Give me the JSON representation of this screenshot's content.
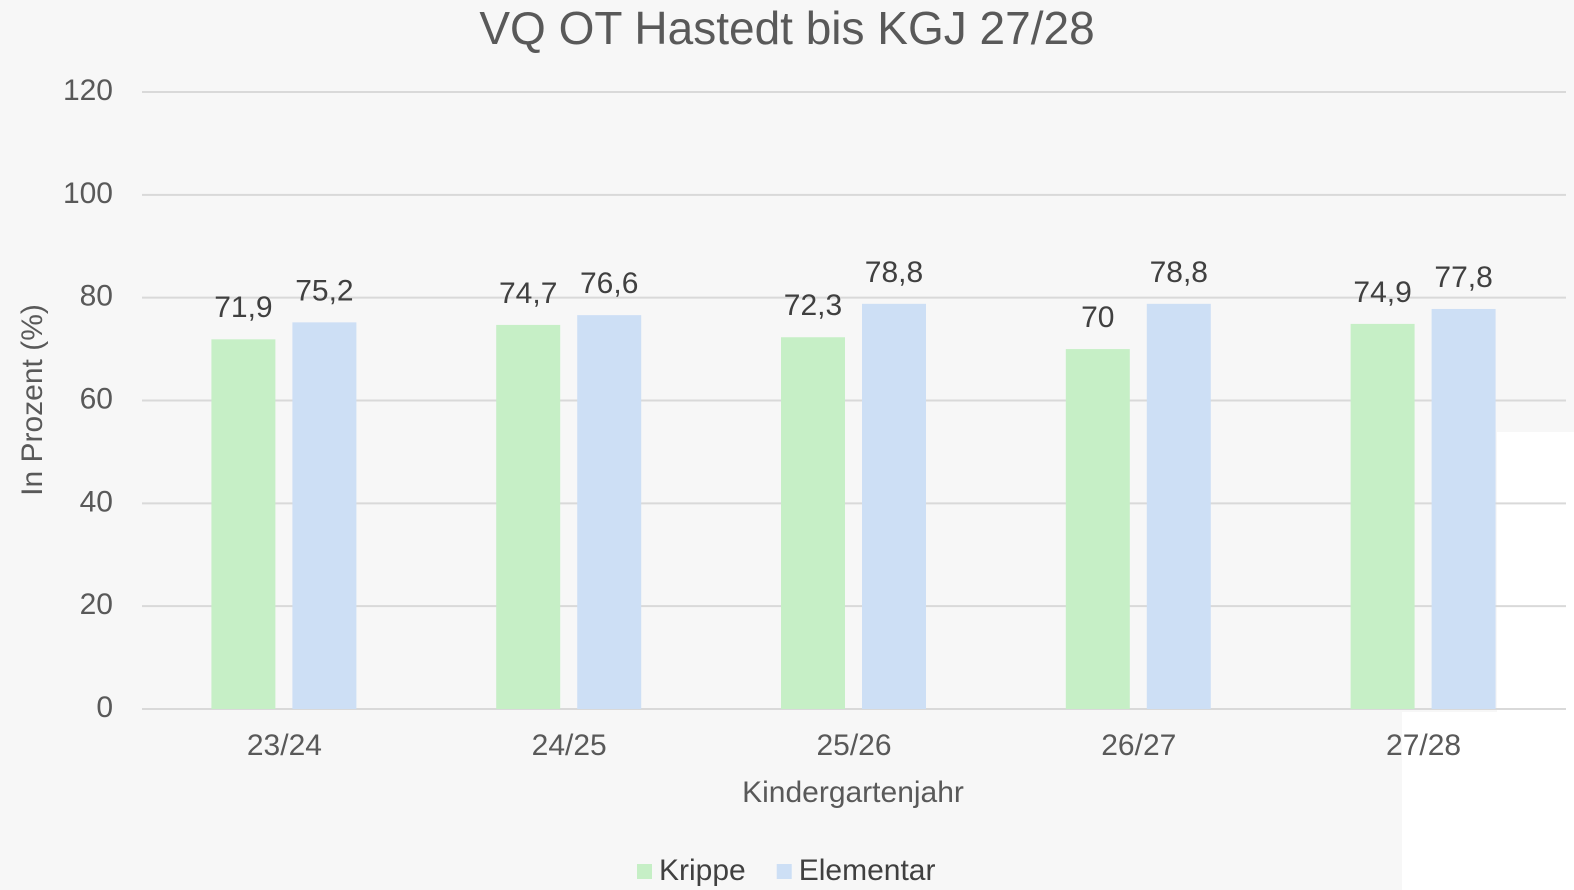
{
  "chart_data": {
    "type": "bar",
    "title": "VQ OT Hastedt bis KGJ 27/28",
    "x_label": "Kindergartenjahr",
    "y_label": "In Prozent (%)",
    "categories": [
      "23/24",
      "24/25",
      "25/26",
      "26/27",
      "27/28"
    ],
    "series": [
      {
        "name": "Krippe",
        "color": "#c6efc6",
        "values": [
          71.9,
          74.7,
          72.3,
          70,
          74.9
        ],
        "value_labels": [
          "71,9",
          "74,7",
          "72,3",
          "70",
          "74,9"
        ]
      },
      {
        "name": "Elementar",
        "color": "#cddff5",
        "values": [
          75.2,
          76.6,
          78.8,
          78.8,
          77.8
        ],
        "value_labels": [
          "75,2",
          "76,6",
          "78,8",
          "78,8",
          "77,8"
        ]
      }
    ],
    "ylim": [
      0,
      120
    ],
    "yticks": [
      0,
      20,
      40,
      60,
      80,
      100,
      120
    ],
    "grid": true,
    "legend": "bottom"
  }
}
